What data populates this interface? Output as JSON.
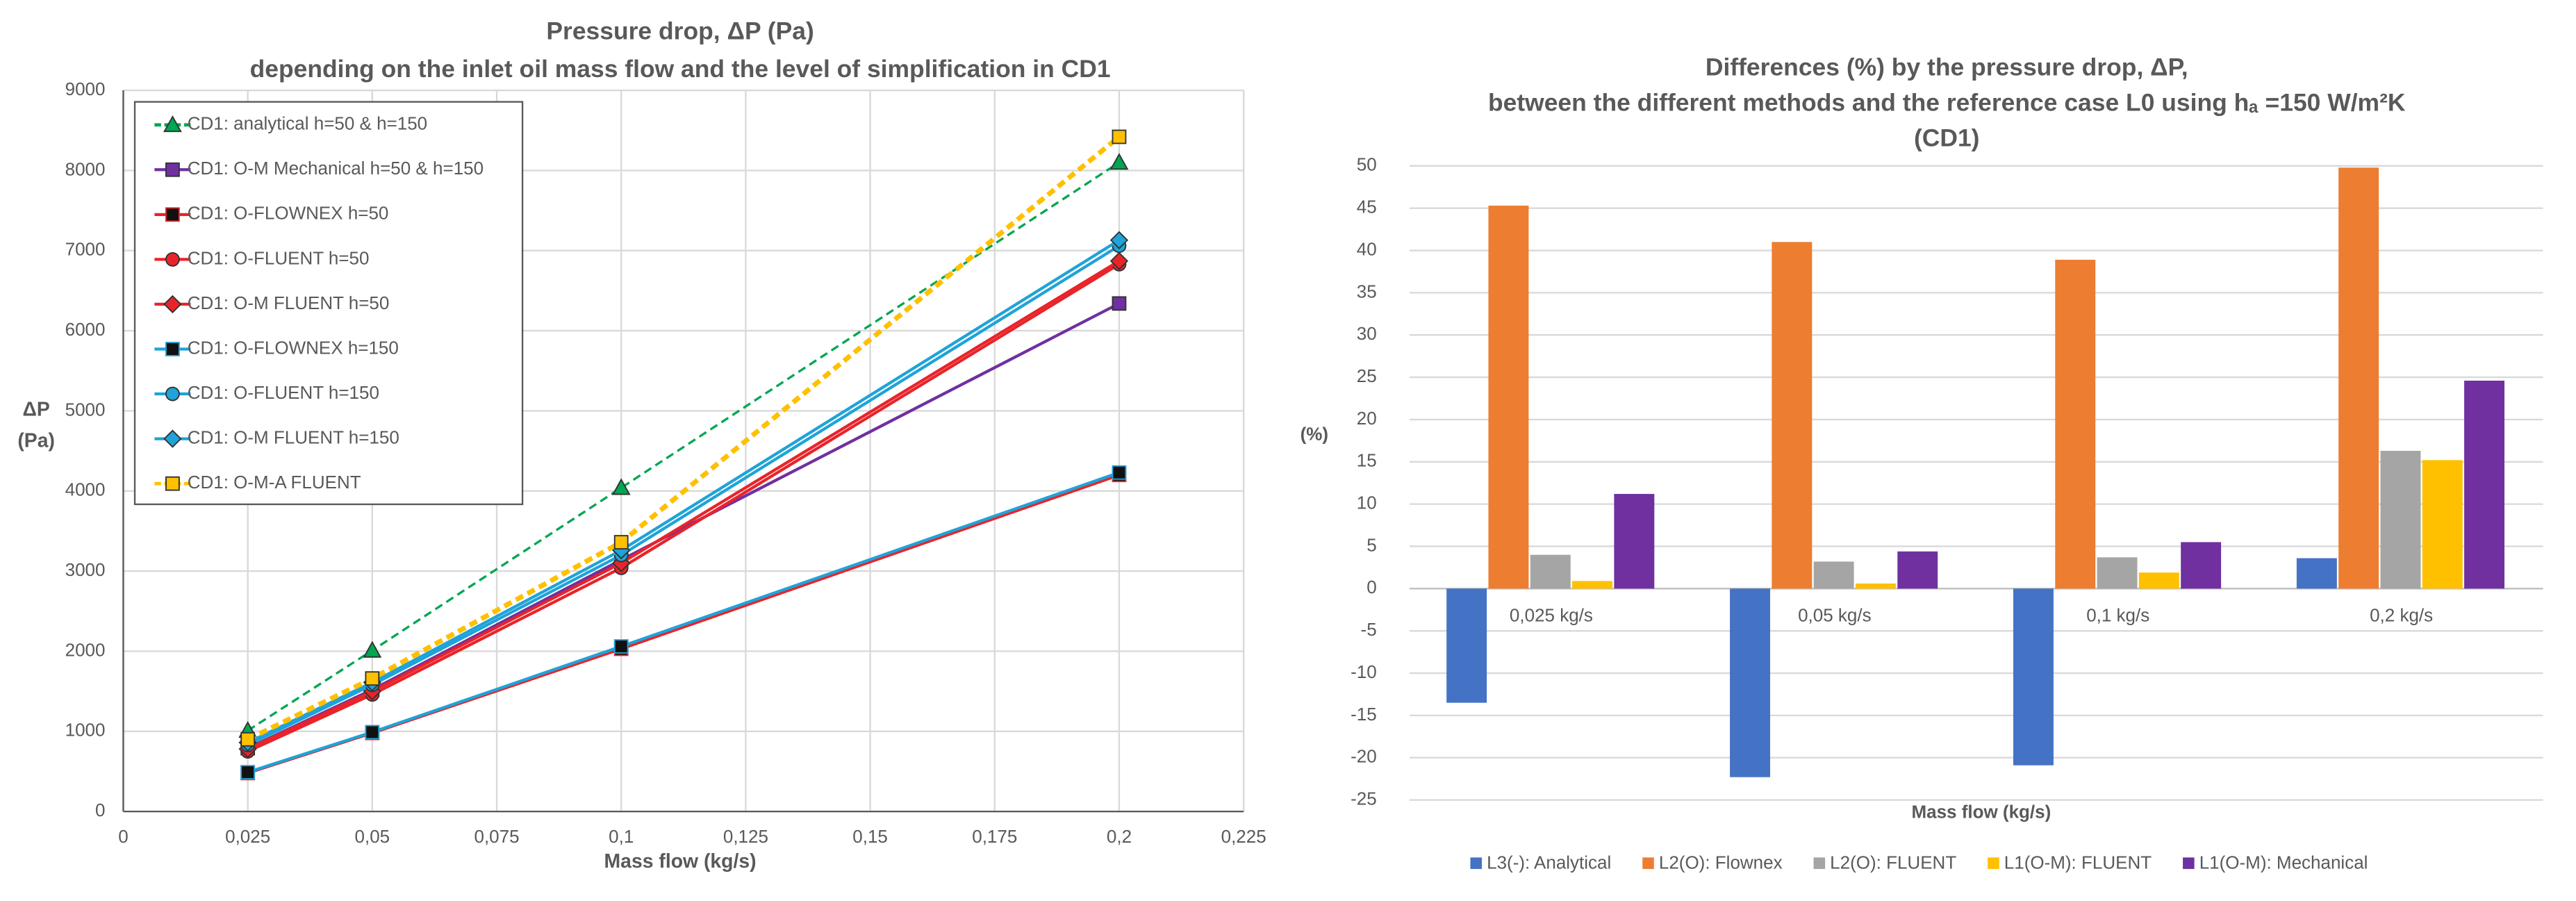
{
  "chart_data": [
    {
      "type": "line",
      "title": [
        "Pressure drop, ΔP (Pa)",
        "depending on the inlet oil mass flow  and the level of simplification in CD1"
      ],
      "x_label": "Mass flow (kg/s)",
      "y_label": [
        "ΔP",
        "(Pa)"
      ],
      "x": [
        0.025,
        0.05,
        0.1,
        0.2
      ],
      "xlim": [
        0,
        0.225
      ],
      "xticks": [
        0,
        {
          "value": 0.025,
          "label": "0,025"
        },
        {
          "value": 0.05,
          "label": "0,05"
        },
        {
          "value": 0.075,
          "label": "0,075"
        },
        {
          "value": 0.1,
          "label": "0,1"
        },
        {
          "value": 0.125,
          "label": "0,125"
        },
        {
          "value": 0.15,
          "label": "0,15"
        },
        {
          "value": 0.175,
          "label": "0,175"
        },
        {
          "value": 0.2,
          "label": "0,2"
        },
        {
          "value": 0.225,
          "label": "0,225"
        }
      ],
      "ylim": [
        0,
        9000
      ],
      "yticks": [
        0,
        1000,
        2000,
        3000,
        4000,
        5000,
        6000,
        7000,
        8000,
        9000
      ],
      "grid": true,
      "legend": "upper left",
      "series": [
        {
          "name": "CD1: analytical h=50 & h=150",
          "color": "#00a650",
          "marker": "triangle",
          "marker_color": "#00a650",
          "dashed": true,
          "values": [
            1010,
            2010,
            4040,
            8100
          ]
        },
        {
          "name": "CD1: O-M Mechanical h=50 & h=150",
          "color": "#7030a0",
          "marker": "square",
          "marker_color": "#7030a0",
          "dashed": false,
          "values": [
            790,
            1520,
            3140,
            6340
          ]
        },
        {
          "name": "CD1: O-FLOWNEX h=50",
          "color": "#e8242a",
          "marker": "square",
          "marker_color": "#111111",
          "dashed": false,
          "values": [
            480,
            980,
            2030,
            4200
          ]
        },
        {
          "name": "CD1: O-FLUENT h=50",
          "color": "#e8242a",
          "marker": "circle",
          "marker_color": "#e8242a",
          "dashed": false,
          "values": [
            750,
            1460,
            3040,
            6830
          ]
        },
        {
          "name": "CD1: O-M FLUENT h=50",
          "color": "#e8242a",
          "marker": "diamond",
          "marker_color": "#e8242a",
          "dashed": false,
          "values": [
            780,
            1500,
            3100,
            6870
          ]
        },
        {
          "name": "CD1: O-FLOWNEX h=150",
          "color": "#1fa3d8",
          "marker": "square",
          "marker_color": "#111111",
          "dashed": false,
          "values": [
            490,
            990,
            2060,
            4230
          ]
        },
        {
          "name": "CD1: O-FLUENT h=150",
          "color": "#1fa3d8",
          "marker": "circle",
          "marker_color": "#1fa3d8",
          "dashed": false,
          "values": [
            830,
            1580,
            3200,
            7060
          ]
        },
        {
          "name": "CD1: O-M FLUENT h=150",
          "color": "#1fa3d8",
          "marker": "diamond",
          "marker_color": "#1fa3d8",
          "dashed": false,
          "values": [
            860,
            1610,
            3260,
            7130
          ]
        },
        {
          "name": "CD1: O-M-A FLUENT",
          "color": "#ffc000",
          "marker": "square",
          "marker_color": "#ffc000",
          "dashed": true,
          "values": [
            900,
            1660,
            3360,
            8420
          ]
        }
      ]
    },
    {
      "type": "bar",
      "title": [
        "Differences (%) by the pressure drop, ΔP,",
        "between the different methods and the reference case L0  using hₐ =150 W/m²K",
        "(CD1)"
      ],
      "x_label": "Mass flow (kg/s)",
      "y_label": "(%)",
      "categories": [
        "0,025 kg/s",
        "0,05 kg/s",
        "0,1 kg/s",
        "0,2 kg/s"
      ],
      "ylim": [
        -25,
        50
      ],
      "yticks": [
        -25,
        -20,
        -15,
        -10,
        -5,
        0,
        5,
        10,
        15,
        20,
        25,
        30,
        35,
        40,
        45,
        50
      ],
      "grid": true,
      "legend": "bottom",
      "series": [
        {
          "name": "L3(-): Analytical",
          "color": "#4472c4",
          "values": [
            -13.5,
            -22.3,
            -20.9,
            3.6
          ]
        },
        {
          "name": "L2(O): Flownex",
          "color": "#ed7d31",
          "values": [
            45.3,
            41,
            38.9,
            49.8
          ]
        },
        {
          "name": "L2(O): FLUENT",
          "color": "#a5a5a5",
          "values": [
            4,
            3.2,
            3.7,
            16.3
          ]
        },
        {
          "name": "L1(O-M): FLUENT",
          "color": "#ffc000",
          "values": [
            0.9,
            0.6,
            1.9,
            15.2
          ]
        },
        {
          "name": "L1(O-M): Mechanical",
          "color": "#7030a0",
          "values": [
            11.2,
            4.4,
            5.5,
            24.6
          ]
        }
      ]
    }
  ]
}
